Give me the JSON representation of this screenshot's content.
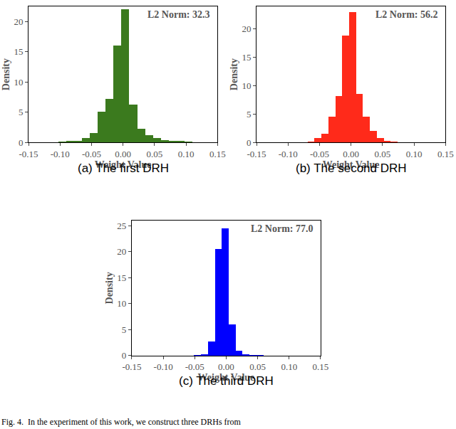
{
  "chart_data": [
    {
      "type": "histogram",
      "title": "(a) The first DRH",
      "x_label": "Weight Value",
      "y_label": "Density",
      "annotations": [
        "L2 Norm: 32.3"
      ],
      "color": "#3b7a1e",
      "bins": [
        -0.1025,
        -0.09,
        -0.0775,
        -0.065,
        -0.0525,
        -0.04,
        -0.0275,
        -0.015,
        -0.0025,
        0.01,
        0.0225,
        0.035,
        0.0475,
        0.06,
        0.0725,
        0.085,
        0.0975,
        0.11
      ],
      "values": [
        0.1,
        0.2,
        0.3,
        0.7,
        1.6,
        5.1,
        7.2,
        16,
        22,
        6.3,
        2.3,
        1.2,
        0.7,
        0.4,
        0.3,
        0.2,
        0.1
      ],
      "xlim": [
        -0.15,
        0.15
      ],
      "xticks": [
        {
          "value": -0.15,
          "label": "-0.15"
        },
        {
          "value": -0.1,
          "label": "-0.10"
        },
        {
          "value": -0.05,
          "label": "-0.05"
        },
        {
          "value": 0,
          "label": "0.00"
        },
        {
          "value": 0.05,
          "label": "0.05"
        },
        {
          "value": 0.1,
          "label": "0.10"
        },
        {
          "value": 0.15,
          "label": "0.15"
        }
      ],
      "ylim": [
        0,
        22.5
      ],
      "yticks": [
        0,
        5,
        10,
        15,
        20
      ],
      "grid": false
    },
    {
      "type": "histogram",
      "title": "(b) The second DRH",
      "x_label": "Weight Value",
      "y_label": "Density",
      "annotations": [
        "L2 Norm: 56.2"
      ],
      "color": "#ff2a1a",
      "bins": [
        -0.069,
        -0.058,
        -0.047,
        -0.036,
        -0.025,
        -0.014,
        -0.003,
        0.008,
        0.019,
        0.03,
        0.041,
        0.052,
        0.063,
        0.074
      ],
      "values": [
        0.2,
        0.8,
        1.5,
        4.5,
        8.2,
        18.8,
        23,
        8.5,
        4.5,
        2,
        0.8,
        0.3,
        0.1
      ],
      "xlim": [
        -0.15,
        0.15
      ],
      "xticks": [
        {
          "value": -0.15,
          "label": "-0.15"
        },
        {
          "value": -0.1,
          "label": "-0.10"
        },
        {
          "value": -0.05,
          "label": "-0.05"
        },
        {
          "value": 0,
          "label": "0.00"
        },
        {
          "value": 0.05,
          "label": "0.05"
        },
        {
          "value": 0.1,
          "label": "0.10"
        },
        {
          "value": 0.15,
          "label": "0.15"
        }
      ],
      "ylim": [
        0,
        24
      ],
      "yticks": [
        0,
        5,
        10,
        15,
        20
      ],
      "grid": false
    },
    {
      "type": "histogram",
      "title": "(c) The third DRH",
      "x_label": "Weight Value",
      "y_label": "Density",
      "annotations": [
        "L2 Norm: 77.0"
      ],
      "color": "#0000ff",
      "bins": [
        -0.051,
        -0.04,
        -0.029,
        -0.018,
        -0.007,
        0.004,
        0.015,
        0.026,
        0.037,
        0.048,
        0.059
      ],
      "values": [
        0.1,
        0.3,
        2.7,
        20.5,
        24.5,
        6,
        1,
        0.3,
        0.1,
        0.05
      ],
      "xlim": [
        -0.15,
        0.15
      ],
      "xticks": [
        {
          "value": -0.15,
          "label": "-0.15"
        },
        {
          "value": -0.1,
          "label": "-0.10"
        },
        {
          "value": -0.05,
          "label": "-0.05"
        },
        {
          "value": 0,
          "label": "0.00"
        },
        {
          "value": 0.05,
          "label": "0.05"
        },
        {
          "value": 0.1,
          "label": "0.10"
        },
        {
          "value": 0.15,
          "label": "0.15"
        }
      ],
      "ylim": [
        0,
        26
      ],
      "yticks": [
        0,
        5,
        10,
        15,
        20,
        25
      ],
      "grid": false
    }
  ],
  "figure_caption": "Fig. 4.  In the experiment of this work, we construct three DRHs from"
}
